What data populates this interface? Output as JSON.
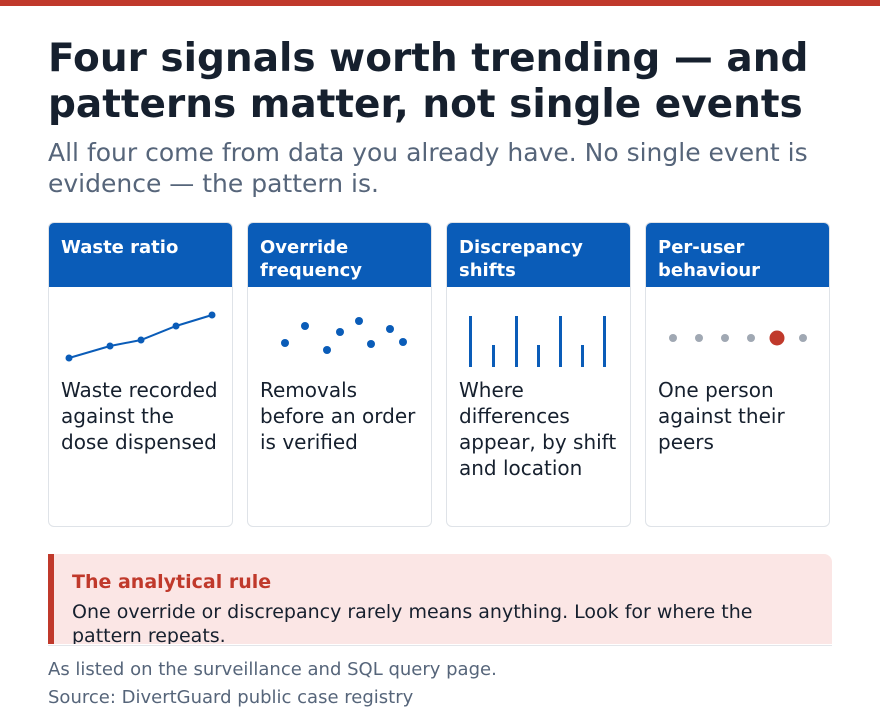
{
  "header": {
    "title": "Four signals worth trending — and patterns matter, not single events",
    "subtitle": "All four come from data you already have. No single event is evidence — the pattern is."
  },
  "cards": [
    {
      "title": "Waste ratio",
      "description": "Waste recorded against the dose dispensed",
      "icon": "trend-line-icon"
    },
    {
      "title": "Override frequency",
      "description": "Removals before an order is verified",
      "icon": "scatter-dots-icon"
    },
    {
      "title": "Discrepancy shifts",
      "description": "Where differences appear, by shift and location",
      "icon": "bar-spikes-icon"
    },
    {
      "title": "Per-user behaviour",
      "description": "One person against their peers",
      "icon": "outlier-dot-icon"
    }
  ],
  "rule": {
    "title": "The analytical rule",
    "text": "One override or discrepancy rarely means anything. Look for where the pattern repeats."
  },
  "footer": {
    "note": "As listed on the surveillance and SQL query page.",
    "source": "Source: DivertGuard public case registry"
  },
  "colors": {
    "accent": "#c0392b",
    "card_header": "#0a5cb8",
    "highlight_dot": "#c0392b",
    "neutral_dot": "#a0a8b3"
  }
}
